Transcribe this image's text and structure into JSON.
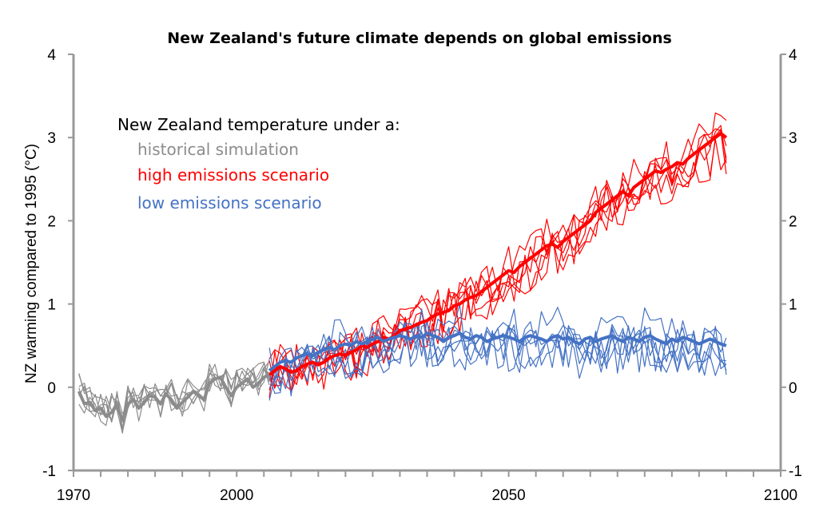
{
  "chart_data": {
    "type": "line",
    "title": "New Zealand's future climate depends on global emissions",
    "xlabel": "",
    "ylabel": "NZ warming compared to 1995 (°C)",
    "xlim": [
      1970,
      2100
    ],
    "ylim": [
      -1,
      4
    ],
    "x_ticks": [
      "1970",
      "2000",
      "2050",
      "2100"
    ],
    "y_ticks": [
      "-1",
      "0",
      "1",
      "2",
      "3",
      "4"
    ],
    "legend": {
      "heading": "New Zealand temperature under a:",
      "placement": "top-left",
      "entries": [
        "historical simulation",
        "high emissions scenario",
        "low emissions scenario"
      ]
    },
    "colors": {
      "historical": "#8c8c8c",
      "high": "#ff0000",
      "low": "#4472c4",
      "axis": "#999999"
    },
    "series": [
      {
        "name": "historical simulation",
        "x_start": 1971,
        "ensemble_mean": [
          -0.05,
          -0.2,
          -0.18,
          -0.28,
          -0.25,
          -0.35,
          -0.3,
          -0.22,
          -0.4,
          -0.2,
          -0.15,
          -0.25,
          -0.18,
          -0.1,
          -0.12,
          -0.2,
          -0.08,
          -0.15,
          -0.25,
          -0.18,
          -0.12,
          -0.05,
          -0.1,
          -0.15,
          0.05,
          0.1,
          0.12,
          0.0,
          -0.1,
          0.0,
          0.05,
          0.1,
          0.0,
          0.05,
          0.12,
          0.15
        ],
        "ensemble_members": 6,
        "member_spread": 0.25
      },
      {
        "name": "high emissions scenario",
        "x_start": 2006,
        "ensemble_mean": [
          0.15,
          0.2,
          0.25,
          0.22,
          0.18,
          0.2,
          0.25,
          0.28,
          0.3,
          0.27,
          0.3,
          0.35,
          0.38,
          0.4,
          0.38,
          0.42,
          0.45,
          0.5,
          0.48,
          0.52,
          0.55,
          0.6,
          0.58,
          0.62,
          0.68,
          0.7,
          0.72,
          0.75,
          0.78,
          0.8,
          0.85,
          0.88,
          0.9,
          0.92,
          0.98,
          1.0,
          1.05,
          1.08,
          1.1,
          1.15,
          1.2,
          1.25,
          1.3,
          1.35,
          1.4,
          1.38,
          1.45,
          1.5,
          1.55,
          1.6,
          1.65,
          1.7,
          1.72,
          1.68,
          1.75,
          1.8,
          1.85,
          1.9,
          1.95,
          2.0,
          2.1,
          2.15,
          2.2,
          2.25,
          2.3,
          2.35,
          2.3,
          2.4,
          2.45,
          2.5,
          2.55,
          2.6,
          2.58,
          2.62,
          2.65,
          2.7,
          2.68,
          2.75,
          2.8,
          2.85,
          2.9,
          2.95,
          3.0,
          3.05,
          3.0
        ],
        "ensemble_members": 6,
        "member_spread": 0.35
      },
      {
        "name": "low emissions scenario",
        "x_start": 2006,
        "ensemble_mean": [
          0.2,
          0.25,
          0.3,
          0.32,
          0.3,
          0.35,
          0.38,
          0.4,
          0.38,
          0.42,
          0.45,
          0.48,
          0.45,
          0.5,
          0.52,
          0.5,
          0.55,
          0.52,
          0.55,
          0.58,
          0.6,
          0.55,
          0.58,
          0.6,
          0.62,
          0.6,
          0.58,
          0.62,
          0.6,
          0.65,
          0.62,
          0.6,
          0.55,
          0.6,
          0.62,
          0.65,
          0.6,
          0.58,
          0.62,
          0.6,
          0.55,
          0.58,
          0.6,
          0.62,
          0.6,
          0.58,
          0.55,
          0.6,
          0.62,
          0.6,
          0.58,
          0.55,
          0.6,
          0.62,
          0.58,
          0.6,
          0.55,
          0.52,
          0.58,
          0.6,
          0.55,
          0.58,
          0.6,
          0.62,
          0.58,
          0.55,
          0.6,
          0.58,
          0.55,
          0.6,
          0.62,
          0.58,
          0.55,
          0.52,
          0.58,
          0.55,
          0.6,
          0.58,
          0.55,
          0.52,
          0.55,
          0.58,
          0.55,
          0.52,
          0.5
        ],
        "ensemble_members": 6,
        "member_spread": 0.35
      }
    ]
  }
}
